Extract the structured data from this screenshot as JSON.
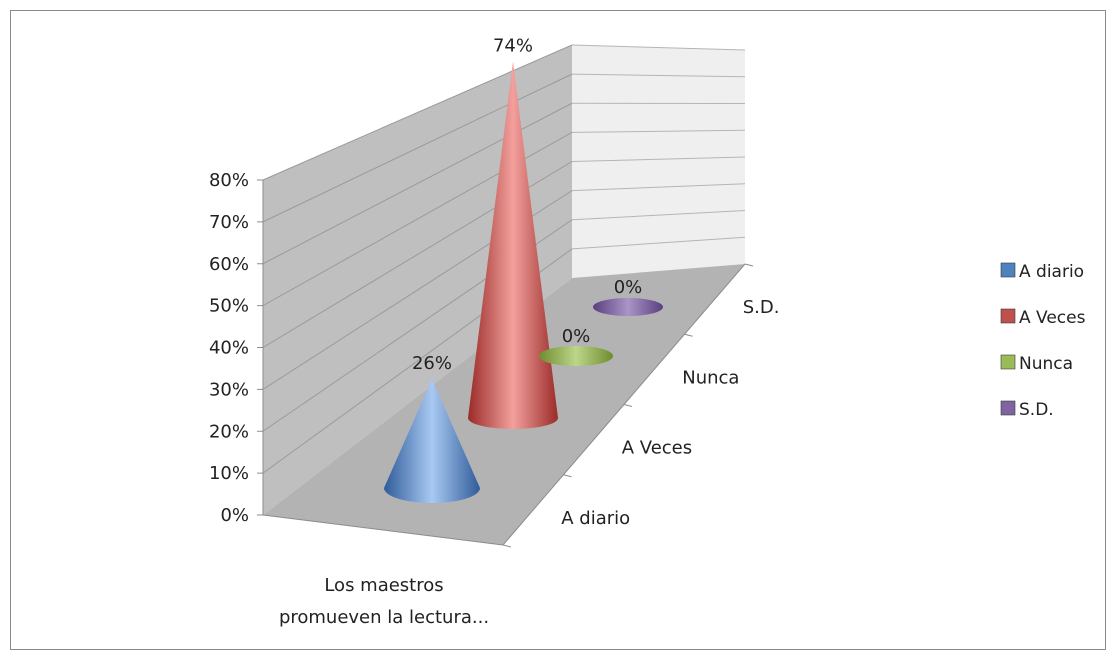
{
  "chart_data": {
    "type": "cone-3d",
    "title": "",
    "categories": [
      "Los maestros promueven la lectura..."
    ],
    "category_lines": [
      "Los maestros",
      "promueven la lectura..."
    ],
    "y_ticks": [
      "0%",
      "10%",
      "20%",
      "30%",
      "40%",
      "50%",
      "60%",
      "70%",
      "80%"
    ],
    "ylim": [
      0,
      80
    ],
    "depth_labels": [
      "A diario",
      "A Veces",
      "Nunca",
      "S.D."
    ],
    "series": [
      {
        "name": "A diario",
        "values": [
          26
        ],
        "label": "26%",
        "color": "#4f81bd"
      },
      {
        "name": "A Veces",
        "values": [
          74
        ],
        "label": "74%",
        "color": "#c0504d"
      },
      {
        "name": "Nunca",
        "values": [
          0
        ],
        "label": "0%",
        "color": "#9bbb59"
      },
      {
        "name": "S.D.",
        "values": [
          0
        ],
        "label": "0%",
        "color": "#8064a2"
      }
    ],
    "legend_position": "right",
    "grid": true
  }
}
